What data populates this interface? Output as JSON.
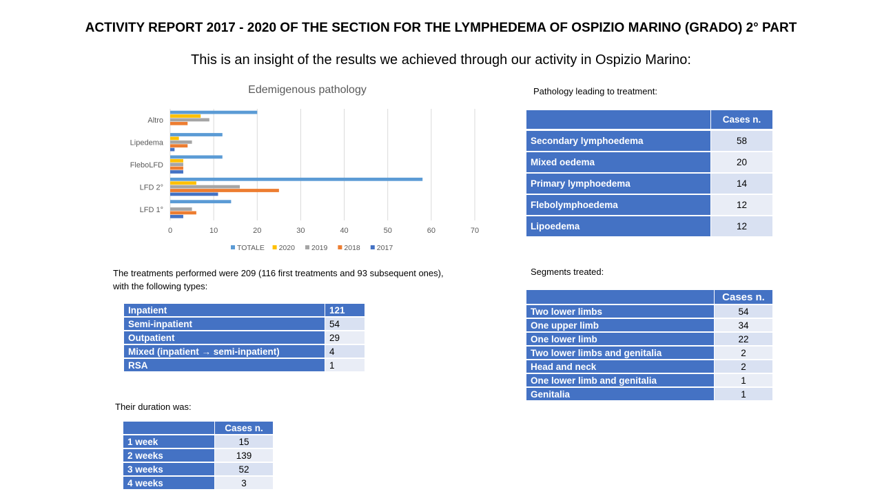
{
  "title": "ACTIVITY REPORT 2017 - 2020 OF THE SECTION FOR THE LYMPHEDEMA OF OSPIZIO MARINO (GRADO) 2° PART",
  "subtitle": "This is an insight of the results we achieved through our activity in Ospizio Marino:",
  "chart_data": {
    "type": "bar",
    "orientation": "horizontal",
    "title": "Edemigenous pathology",
    "categories": [
      "Altro",
      "Lipedema",
      "FleboLFD",
      "LFD 2°",
      "LFD 1°"
    ],
    "series": [
      {
        "name": "TOTALE",
        "color": "#5b9bd5",
        "values": [
          20,
          12,
          12,
          58,
          14
        ]
      },
      {
        "name": "2020",
        "color": "#ffc000",
        "values": [
          7,
          2,
          3,
          6,
          0
        ]
      },
      {
        "name": "2019",
        "color": "#a5a5a5",
        "values": [
          9,
          5,
          3,
          16,
          5
        ]
      },
      {
        "name": "2018",
        "color": "#ed7d31",
        "values": [
          4,
          4,
          3,
          25,
          6
        ]
      },
      {
        "name": "2017",
        "color": "#4472c4",
        "values": [
          0,
          1,
          3,
          11,
          3
        ]
      }
    ],
    "xlim": [
      0,
      70
    ],
    "xticks": [
      "0",
      "10",
      "20",
      "30",
      "40",
      "50",
      "60",
      "70"
    ],
    "grid": true,
    "legend_position": "bottom"
  },
  "pathology": {
    "label": "Pathology leading to treatment:",
    "header": "Cases n.",
    "rows": [
      {
        "name": "Secondary lymphoedema",
        "value": "58"
      },
      {
        "name": "Mixed oedema",
        "value": "20"
      },
      {
        "name": "Primary lymphoedema",
        "value": "14"
      },
      {
        "name": "Flebolymphoedema",
        "value": "12"
      },
      {
        "name": "Lipoedema",
        "value": "12"
      }
    ]
  },
  "treatments": {
    "text_line1": "The treatments performed were 209 (116 first treatments and 93 subsequent ones),",
    "text_line2": "with the following types:",
    "rows": [
      {
        "name": "Inpatient",
        "value": "121"
      },
      {
        "name": "Semi-inpatient",
        "value": "54"
      },
      {
        "name": "Outpatient",
        "value": "29"
      },
      {
        "name": "Mixed (inpatient → semi-inpatient)",
        "value": "4"
      },
      {
        "name": "RSA",
        "value": "1"
      }
    ]
  },
  "segments": {
    "label": "Segments treated:",
    "header": "Cases n.",
    "rows": [
      {
        "name": "Two lower limbs",
        "value": "54"
      },
      {
        "name": "One upper limb",
        "value": "34"
      },
      {
        "name": "One lower limb",
        "value": "22"
      },
      {
        "name": "Two lower limbs and genitalia",
        "value": "2"
      },
      {
        "name": "Head and neck",
        "value": "2"
      },
      {
        "name": "One lower limb and genitalia",
        "value": "1"
      },
      {
        "name": "Genitalia",
        "value": "1"
      }
    ]
  },
  "duration": {
    "label": "Their duration was:",
    "header": "Cases n.",
    "rows": [
      {
        "name": "1 week",
        "value": "15"
      },
      {
        "name": "2 weeks",
        "value": "139"
      },
      {
        "name": "3 weeks",
        "value": "52"
      },
      {
        "name": "4 weeks",
        "value": "3"
      }
    ]
  }
}
